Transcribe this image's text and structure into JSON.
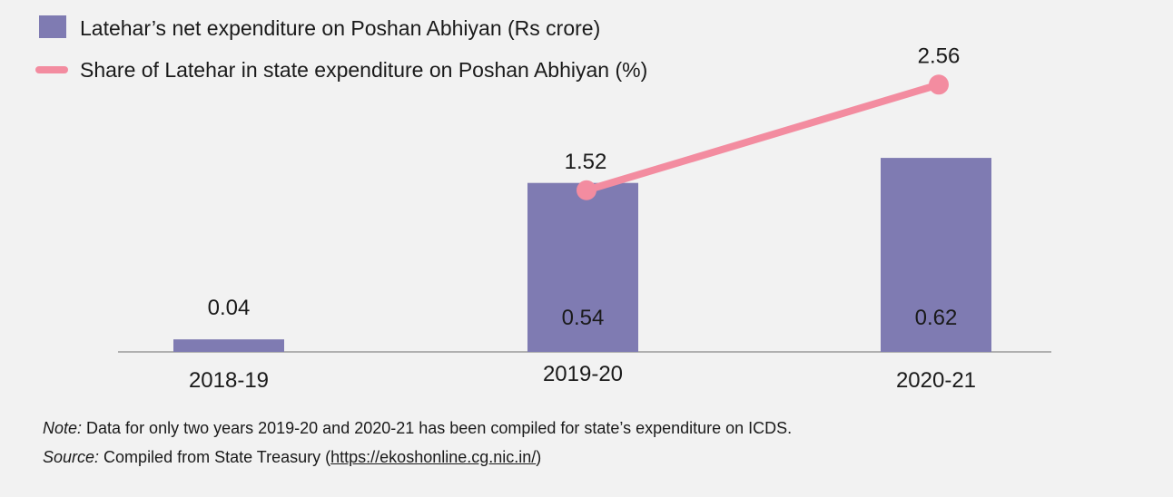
{
  "chart_data": {
    "type": "bar",
    "categories": [
      "2018-19",
      "2019-20",
      "2020-21"
    ],
    "series": [
      {
        "name": "Latehar’s net expenditure on Poshan Abhiyan (Rs crore)",
        "kind": "bar",
        "color": "#7f7bb2",
        "values": [
          0.04,
          0.54,
          0.62
        ],
        "labels": [
          "0.04",
          "0.54",
          "0.62"
        ]
      },
      {
        "name": "Share of Latehar in state expenditure on Poshan Abhiyan (%)",
        "kind": "line",
        "color": "#f38ca0",
        "values": [
          null,
          1.52,
          2.56
        ],
        "labels": [
          "",
          "1.52",
          "2.56"
        ]
      }
    ],
    "legend_position": "top-left"
  },
  "footer": {
    "note_label": "Note:",
    "note_text": " Data for only two years 2019-20 and 2020-21 has been compiled for state’s expenditure on ICDS.",
    "source_label": "Source:",
    "source_text": " Compiled from State Treasury (",
    "source_link": "https://ekoshonline.cg.nic.in/",
    "source_end": ")"
  }
}
